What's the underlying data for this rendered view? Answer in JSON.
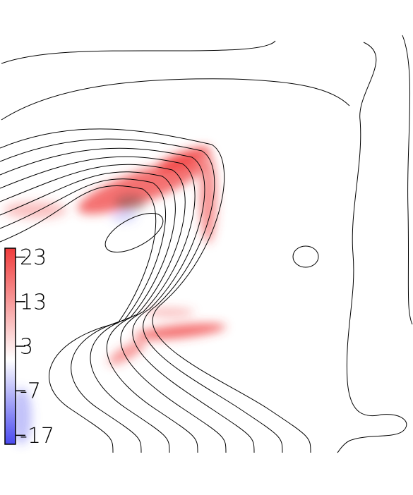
{
  "chart_data": {
    "type": "contour",
    "colorbar": {
      "lim": [
        -19,
        25
      ],
      "ticks": [
        23,
        13,
        3,
        -7,
        -17
      ],
      "colors": [
        "#4a4af0",
        "#ffffff",
        "#f03c3c"
      ]
    }
  }
}
